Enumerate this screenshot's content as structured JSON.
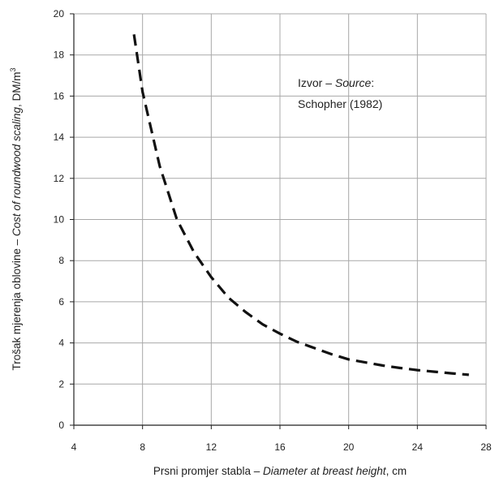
{
  "chart_data": {
    "type": "line",
    "title": "",
    "xlabel": {
      "hr": "Prsni promjer stabla – ",
      "en": "Diameter at breast height",
      "unit": ", cm"
    },
    "ylabel": {
      "hr": "Trošak mjerenja oblovine – ",
      "en": "Cost of roundwood scaling",
      "unit": ", DM/m",
      "unit_sup": "3"
    },
    "xlim": [
      4,
      28
    ],
    "ylim": [
      0,
      20
    ],
    "xticks": [
      4,
      8,
      12,
      16,
      20,
      24,
      28
    ],
    "yticks": [
      0,
      2,
      4,
      6,
      8,
      10,
      12,
      14,
      16,
      18,
      20
    ],
    "grid": true,
    "line_style": "dashed",
    "line_color": "#111111",
    "annotation": {
      "line1_prefix": "Izvor – ",
      "line1_italic": "Source",
      "line1_suffix": ":",
      "line2": "Schopher (1982)"
    },
    "series": [
      {
        "x": [
          7.5,
          8,
          9,
          10,
          11,
          12,
          13,
          14,
          15,
          16,
          17,
          18,
          19,
          20,
          21,
          22,
          23,
          24,
          25,
          26,
          27
        ],
        "y": [
          19.0,
          16.2,
          12.6,
          10.0,
          8.4,
          7.2,
          6.2,
          5.5,
          4.9,
          4.45,
          4.05,
          3.75,
          3.45,
          3.2,
          3.05,
          2.9,
          2.78,
          2.68,
          2.6,
          2.52,
          2.45
        ]
      }
    ]
  }
}
